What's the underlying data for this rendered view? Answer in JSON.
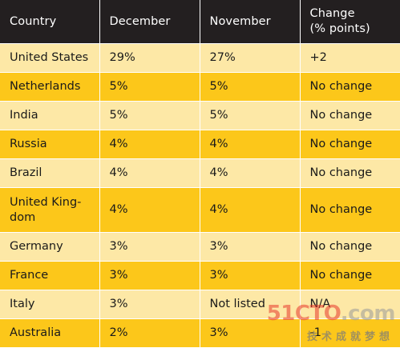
{
  "table": {
    "headers": {
      "country": "Country",
      "december": "December",
      "november": "November",
      "change": "Change\n(% points)"
    },
    "rows": [
      {
        "country": "United States",
        "december": "29%",
        "november": "27%",
        "change": "+2"
      },
      {
        "country": "Netherlands",
        "december": "5%",
        "november": "5%",
        "change": "No change"
      },
      {
        "country": "India",
        "december": "5%",
        "november": "5%",
        "change": "No change"
      },
      {
        "country": "Russia",
        "december": "4%",
        "november": "4%",
        "change": "No change"
      },
      {
        "country": "Brazil",
        "december": "4%",
        "november": "4%",
        "change": "No change"
      },
      {
        "country": "United King-\ndom",
        "december": "4%",
        "november": "4%",
        "change": "No change"
      },
      {
        "country": "Germany",
        "december": "3%",
        "november": "3%",
        "change": "No change"
      },
      {
        "country": "France",
        "december": "3%",
        "november": "3%",
        "change": "No change"
      },
      {
        "country": "Italy",
        "december": "3%",
        "november": "Not listed",
        "change": "N/A"
      },
      {
        "country": "Australia",
        "december": "2%",
        "november": "3%",
        "change": "-1"
      }
    ]
  },
  "colors": {
    "header_bg": "#231f20",
    "row_light": "#fde8a6",
    "row_dark": "#fcc71a",
    "watermark_red": "#e8392b"
  },
  "watermark": {
    "logo_red": "51CTO",
    "logo_gray": ".com",
    "subtitle": "技术成就梦想"
  }
}
